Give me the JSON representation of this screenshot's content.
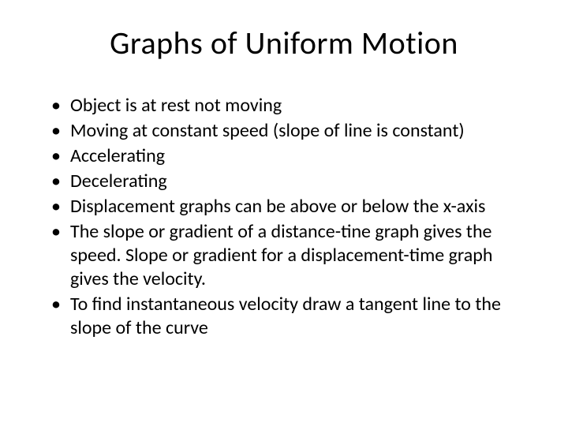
{
  "slide": {
    "title": "Graphs of Uniform Motion",
    "title_fontsize": 40,
    "body_fontsize": 24,
    "background_color": "#ffffff",
    "text_color": "#000000",
    "font_family": "Calibri",
    "bullets": [
      "Object is at rest not moving",
      "Moving at constant speed (slope of line is constant)",
      "Accelerating",
      "Decelerating",
      "Displacement graphs can be above or below the x-axis",
      "The slope or gradient of a distance-tine graph gives the speed. Slope or gradient for a displacement-time graph gives the velocity.",
      "To find instantaneous velocity draw a tangent line to the slope of the curve"
    ]
  }
}
